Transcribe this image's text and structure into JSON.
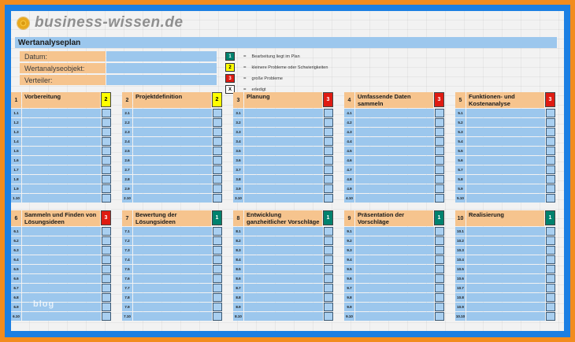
{
  "logo": {
    "text": "business-wissen.de",
    "icon": "flower-icon"
  },
  "title": "Wertanalyseplan",
  "form": {
    "fields": [
      {
        "label": "Datum:",
        "value": ""
      },
      {
        "label": "Wertanalyseobjekt:",
        "value": ""
      },
      {
        "label": "Verteiler:",
        "value": ""
      }
    ]
  },
  "legend": {
    "items": [
      {
        "code": "1",
        "bg": "#00826E",
        "fg": "#FFFFFF",
        "label": "Bearbeitung liegt im Plan"
      },
      {
        "code": "2",
        "bg": "#FFFF00",
        "fg": "#000000",
        "label": "kleinere Probleme oder Schwierigkeiten"
      },
      {
        "code": "3",
        "bg": "#DF1B12",
        "fg": "#FFFFFF",
        "label": "große Probleme"
      },
      {
        "code": "X",
        "bg": "#FFFFFF",
        "fg": "#000000",
        "label": "erledigt"
      }
    ]
  },
  "status_colors": {
    "1": {
      "bg": "#00826E",
      "fg": "#FFFFFF"
    },
    "2": {
      "bg": "#FFFF00",
      "fg": "#000000"
    },
    "3": {
      "bg": "#DF1B12",
      "fg": "#FFFFFF"
    }
  },
  "sections": [
    {
      "num": "1",
      "title": "Vorbereitung",
      "status": "2",
      "rows": [
        "1.1",
        "1.2",
        "1.3",
        "1.4",
        "1.5",
        "1.6",
        "1.7",
        "1.8",
        "1.9",
        "1.10"
      ]
    },
    {
      "num": "2",
      "title": "Projektdefinition",
      "status": "2",
      "rows": [
        "2.1",
        "2.2",
        "2.3",
        "2.4",
        "2.5",
        "2.6",
        "2.7",
        "2.8",
        "2.9",
        "2.10"
      ]
    },
    {
      "num": "3",
      "title": "Planung",
      "status": "3",
      "rows": [
        "3.1",
        "3.2",
        "3.3",
        "3.4",
        "3.5",
        "3.6",
        "3.7",
        "3.8",
        "3.9",
        "3.10"
      ]
    },
    {
      "num": "4",
      "title": "Umfassende Daten sammeln",
      "status": "3",
      "rows": [
        "4.1",
        "4.2",
        "4.3",
        "4.4",
        "4.5",
        "4.6",
        "4.7",
        "4.8",
        "4.9",
        "4.10"
      ]
    },
    {
      "num": "5",
      "title": "Funktionen- und Kostenanalyse",
      "status": "3",
      "rows": [
        "5.1",
        "5.2",
        "5.3",
        "5.4",
        "5.5",
        "5.6",
        "5.7",
        "5.8",
        "5.9",
        "5.10"
      ]
    },
    {
      "num": "6",
      "title": "Sammeln und Finden von Lösungsideen",
      "status": "3",
      "rows": [
        "6.1",
        "6.2",
        "6.3",
        "6.4",
        "6.5",
        "6.6",
        "6.7",
        "6.8",
        "6.9",
        "6.10"
      ]
    },
    {
      "num": "7",
      "title": "Bewertung der Lösungsideen",
      "status": "1",
      "rows": [
        "7.1",
        "7.2",
        "7.3",
        "7.4",
        "7.5",
        "7.6",
        "7.7",
        "7.8",
        "7.9",
        "7.10"
      ]
    },
    {
      "num": "8",
      "title": "Entwicklung ganzheitlicher Vorschläge",
      "status": "1",
      "rows": [
        "8.1",
        "8.2",
        "8.3",
        "8.4",
        "8.5",
        "8.6",
        "8.7",
        "8.8",
        "8.9",
        "8.10"
      ]
    },
    {
      "num": "9",
      "title": "Präsentation der Vorschläge",
      "status": "1",
      "rows": [
        "9.1",
        "9.2",
        "9.3",
        "9.4",
        "9.5",
        "9.6",
        "9.7",
        "9.8",
        "9.9",
        "9.10"
      ]
    },
    {
      "num": "10",
      "title": "Realisierung",
      "status": "1",
      "rows": [
        "10.1",
        "10.2",
        "10.3",
        "10.4",
        "10.5",
        "10.6",
        "10.7",
        "10.8",
        "10.9",
        "10.10"
      ]
    }
  ],
  "watermark": "blog",
  "colors": {
    "outer_border": "#F28C1E",
    "inner_border": "#1B7FE3",
    "sheet_bg": "#F2F2F2",
    "tan": "#F6C48E",
    "light_blue": "#9CC7ED"
  }
}
